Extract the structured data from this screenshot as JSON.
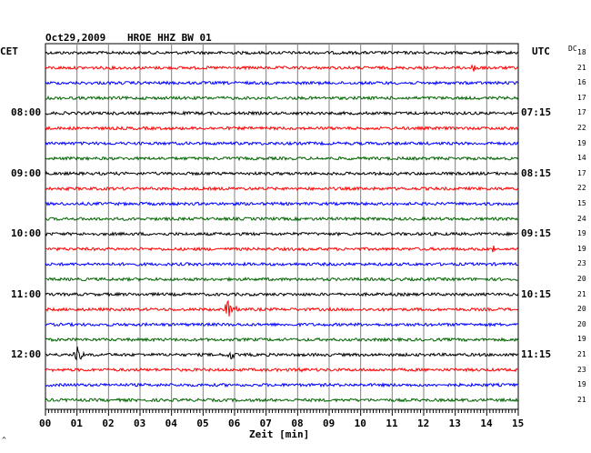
{
  "header": {
    "date": "Oct29,2009",
    "station": "HROE HHZ BW 01",
    "left_tz": "CET",
    "right_tz": "UTC",
    "dc_label": "DC"
  },
  "xaxis": {
    "label": "Zeit [min]",
    "ticks": [
      "00",
      "01",
      "02",
      "03",
      "04",
      "05",
      "06",
      "07",
      "08",
      "09",
      "10",
      "11",
      "12",
      "13",
      "14",
      "15"
    ]
  },
  "left_times": [
    "08:00",
    "09:00",
    "10:00",
    "11:00",
    "12:00"
  ],
  "right_times": [
    "07:15",
    "08:15",
    "09:15",
    "10:15",
    "11:15"
  ],
  "dc_values": [
    "18",
    "21",
    "16",
    "17",
    "17",
    "22",
    "19",
    "14",
    "17",
    "22",
    "15",
    "24",
    "19",
    "19",
    "23",
    "20",
    "21",
    "20",
    "20",
    "19",
    "21",
    "23",
    "19",
    "21"
  ],
  "trace_colors": [
    "#000000",
    "#ff0000",
    "#0000ff",
    "#006400"
  ],
  "events": [
    {
      "trace": 1,
      "minute": 13.6,
      "amp": 6,
      "dur": 0.4
    },
    {
      "trace": 17,
      "minute": 5.8,
      "amp": 13,
      "dur": 0.5
    },
    {
      "trace": 20,
      "minute": 1.0,
      "amp": 10,
      "dur": 0.5
    },
    {
      "trace": 20,
      "minute": 5.9,
      "amp": 6,
      "dur": 0.6
    },
    {
      "trace": 21,
      "minute": 8.1,
      "amp": 3,
      "dur": 0.3
    },
    {
      "trace": 13,
      "minute": 14.2,
      "amp": 6,
      "dur": 0.5
    }
  ],
  "corner_mark": "^"
}
